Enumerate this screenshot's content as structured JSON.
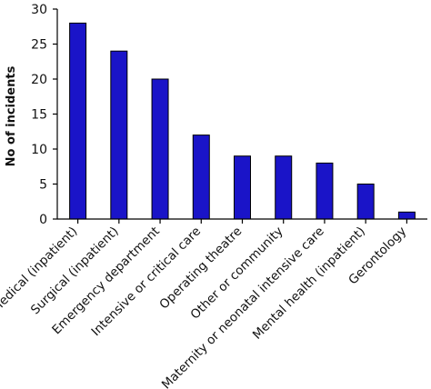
{
  "chart_data": {
    "type": "bar",
    "title": "",
    "xlabel": "",
    "ylabel": "No of incidents",
    "ylim": [
      0,
      30
    ],
    "yticks": [
      0,
      5,
      10,
      15,
      20,
      25,
      30
    ],
    "grid": false,
    "categories": [
      "Medical (inpatient)",
      "Surgical (inpatient)",
      "Emergency department",
      "Intensive or critical care",
      "Operating theatre",
      "Other or community",
      "Maternity or neonatal intensive care",
      "Mental health (inpatient)",
      "Gerontology"
    ],
    "values": [
      28,
      24,
      20,
      12,
      9,
      9,
      8,
      5,
      1
    ],
    "bar_color": "#1a14c8"
  }
}
